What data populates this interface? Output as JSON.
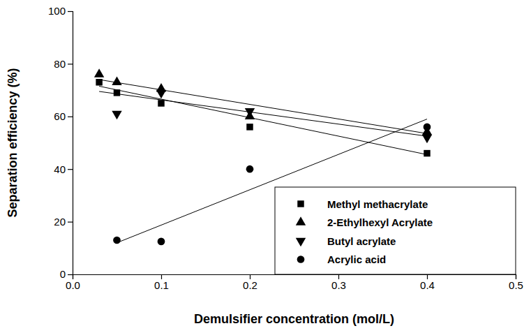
{
  "chart_data": {
    "type": "scatter",
    "x_label": "Demulsifier concentration (mol/L)",
    "y_label": "Separation efficiency (%)",
    "xlim": [
      0,
      0.5
    ],
    "xticks": [
      {
        "value": 0,
        "label": "0.0"
      },
      0.1,
      0.2,
      0.3,
      0.4,
      0.5
    ],
    "ylim": [
      0,
      100
    ],
    "yticks": [
      0,
      20,
      40,
      60,
      80,
      100
    ],
    "grid": false,
    "legend": "lower right",
    "series": [
      {
        "name": "Methyl methacrylate",
        "color": "#000000",
        "marker": "square",
        "x": [
          0.03,
          0.05,
          0.1,
          0.2,
          0.4
        ],
        "values": [
          73,
          69,
          65,
          56,
          46
        ],
        "trend_x": [
          0.03,
          0.4
        ],
        "trend_y": [
          71.5,
          45.5
        ]
      },
      {
        "name": "2-Ethylhexyl Acrylate",
        "color": "#000000",
        "marker": "triangle",
        "x": [
          0.03,
          0.05,
          0.1,
          0.2,
          0.4
        ],
        "values": [
          76,
          73,
          70.5,
          60,
          54
        ],
        "trend_x": [
          0.03,
          0.4
        ],
        "trend_y": [
          74,
          53.5
        ]
      },
      {
        "name": "Butyl acrylate",
        "color": "#000000",
        "marker": "triangle-down",
        "x": [
          0.05,
          0.1,
          0.2,
          0.4
        ],
        "values": [
          61,
          69,
          62,
          52
        ],
        "trend_x": [
          0.03,
          0.4
        ],
        "trend_y": [
          69.5,
          52.5
        ]
      },
      {
        "name": "Acrylic acid",
        "color": "#000000",
        "marker": "circle",
        "x": [
          0.05,
          0.1,
          0.2,
          0.4
        ],
        "values": [
          13,
          12.5,
          40,
          56
        ],
        "trend_x": [
          0.05,
          0.4
        ],
        "trend_y": [
          12,
          59
        ]
      }
    ]
  }
}
